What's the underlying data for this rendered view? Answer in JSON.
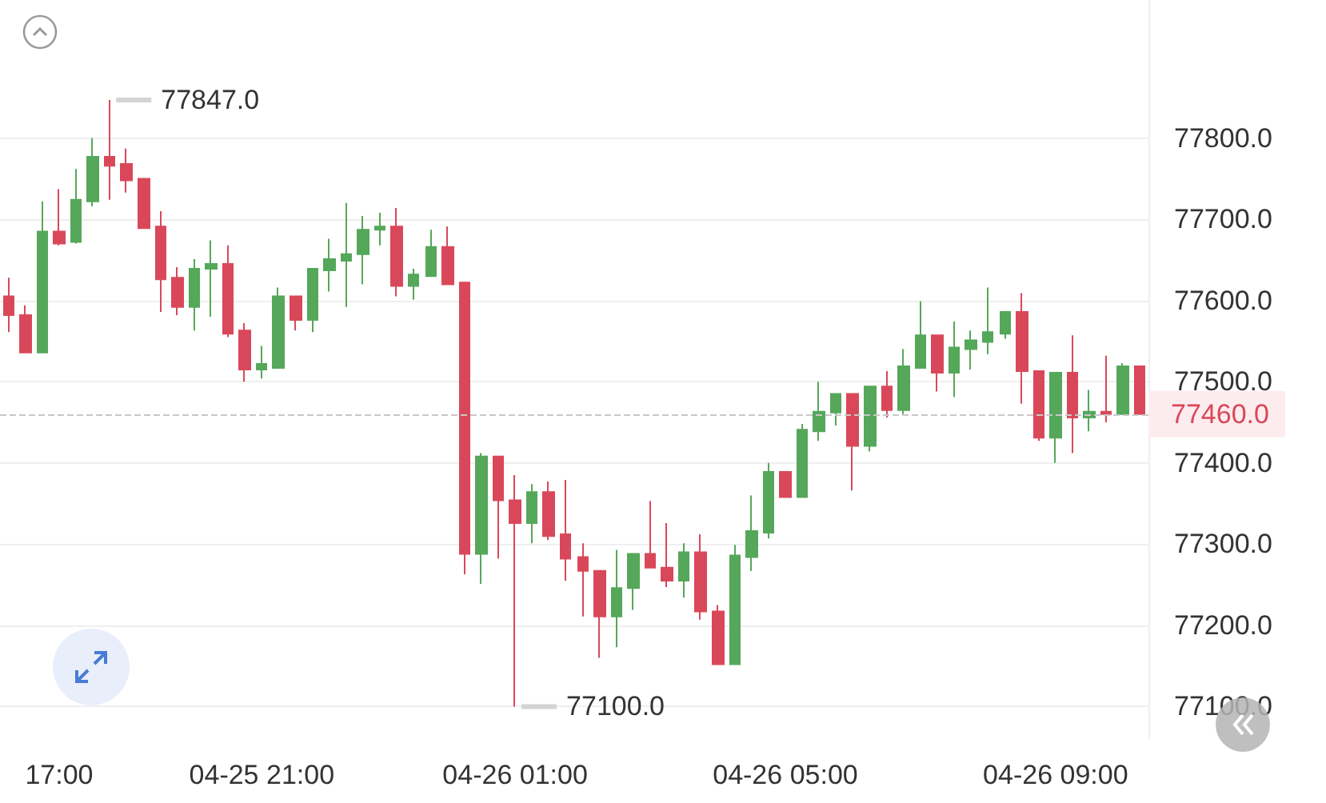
{
  "chart_data": {
    "type": "candlestick",
    "categories": [
      null,
      null,
      null,
      "17:00",
      null,
      null,
      null,
      null,
      null,
      null,
      null,
      null,
      null,
      null,
      null,
      "04-25 21:00",
      null,
      null,
      null,
      null,
      null,
      null,
      null,
      null,
      null,
      null,
      null,
      null,
      null,
      null,
      "04-26 01:00",
      null,
      null,
      null,
      null,
      null,
      null,
      null,
      null,
      null,
      null,
      null,
      null,
      null,
      null,
      null,
      "04-26 05:00",
      null,
      null,
      null,
      null,
      null,
      null,
      null,
      null,
      null,
      null,
      null,
      null,
      null,
      null,
      null,
      "04-26 09:00",
      null,
      null,
      null,
      null,
      null
    ],
    "ohlc": [
      [
        77605,
        77628,
        77561,
        77582
      ],
      [
        77582,
        77594,
        77536,
        77536
      ],
      [
        77536,
        77722,
        77536,
        77685
      ],
      [
        77685,
        77737,
        77668,
        77670
      ],
      [
        77672,
        77762,
        77670,
        77724
      ],
      [
        77722,
        77800,
        77716,
        77777
      ],
      [
        77777,
        77847,
        77724,
        77766
      ],
      [
        77768,
        77787,
        77733,
        77748
      ],
      [
        77750,
        77750,
        77689,
        77689
      ],
      [
        77691,
        77710,
        77586,
        77626
      ],
      [
        77628,
        77641,
        77582,
        77592
      ],
      [
        77592,
        77651,
        77563,
        77639
      ],
      [
        77639,
        77674,
        77580,
        77645
      ],
      [
        77645,
        77668,
        77555,
        77559
      ],
      [
        77563,
        77572,
        77500,
        77515
      ],
      [
        77515,
        77544,
        77504,
        77522
      ],
      [
        77517,
        77616,
        77517,
        77605
      ],
      [
        77605,
        77605,
        77563,
        77576
      ],
      [
        77576,
        77639,
        77561,
        77639
      ],
      [
        77637,
        77676,
        77611,
        77651
      ],
      [
        77649,
        77720,
        77592,
        77657
      ],
      [
        77657,
        77704,
        77620,
        77687
      ],
      [
        77687,
        77708,
        77668,
        77691
      ],
      [
        77691,
        77714,
        77605,
        77618
      ],
      [
        77618,
        77639,
        77601,
        77632
      ],
      [
        77630,
        77687,
        77630,
        77666
      ],
      [
        77666,
        77691,
        77620,
        77620
      ],
      [
        77622,
        77622,
        77263,
        77288
      ],
      [
        77288,
        77412,
        77251,
        77408
      ],
      [
        77408,
        77408,
        77282,
        77354
      ],
      [
        77354,
        77385,
        77100,
        77326
      ],
      [
        77326,
        77374,
        77301,
        77364
      ],
      [
        77364,
        77377,
        77305,
        77310
      ],
      [
        77312,
        77379,
        77255,
        77282
      ],
      [
        77284,
        77301,
        77211,
        77267
      ],
      [
        77267,
        77267,
        77160,
        77211
      ],
      [
        77211,
        77293,
        77173,
        77246
      ],
      [
        77246,
        77288,
        77219,
        77288
      ],
      [
        77288,
        77353,
        77271,
        77271
      ],
      [
        77271,
        77326,
        77247,
        77255
      ],
      [
        77255,
        77301,
        77234,
        77290
      ],
      [
        77290,
        77312,
        77207,
        77217
      ],
      [
        77217,
        77225,
        77152,
        77152
      ],
      [
        77152,
        77299,
        77152,
        77286
      ],
      [
        77284,
        77360,
        77267,
        77316
      ],
      [
        77314,
        77400,
        77307,
        77389
      ],
      [
        77389,
        77389,
        77358,
        77358
      ],
      [
        77358,
        77448,
        77358,
        77441
      ],
      [
        77439,
        77500,
        77427,
        77463
      ],
      [
        77462,
        77485,
        77446,
        77485
      ],
      [
        77485,
        77485,
        77366,
        77421
      ],
      [
        77421,
        77494,
        77414,
        77494
      ],
      [
        77494,
        77513,
        77456,
        77465
      ],
      [
        77465,
        77540,
        77460,
        77519
      ],
      [
        77517,
        77599,
        77517,
        77557
      ],
      [
        77557,
        77557,
        77488,
        77511
      ],
      [
        77511,
        77574,
        77481,
        77542
      ],
      [
        77540,
        77563,
        77515,
        77551
      ],
      [
        77549,
        77616,
        77534,
        77561
      ],
      [
        77559,
        77586,
        77553,
        77586
      ],
      [
        77586,
        77609,
        77473,
        77513
      ],
      [
        77513,
        77513,
        77427,
        77431
      ],
      [
        77431,
        77511,
        77400,
        77511
      ],
      [
        77511,
        77557,
        77412,
        77456
      ],
      [
        77456,
        77490,
        77439,
        77463
      ],
      [
        77463,
        77532,
        77450,
        77460
      ],
      [
        77460,
        77523,
        77460,
        77519
      ],
      [
        77519,
        77519,
        77460,
        77460
      ]
    ],
    "ylim": [
      77060,
      77970
    ],
    "yticks": [
      {
        "value": 77100,
        "label": "77100.0"
      },
      {
        "value": 77200,
        "label": "77200.0"
      },
      {
        "value": 77300,
        "label": "77300.0"
      },
      {
        "value": 77400,
        "label": "77400.0"
      },
      {
        "value": 77500,
        "label": "77500.0"
      },
      {
        "value": 77600,
        "label": "77600.0"
      },
      {
        "value": 77700,
        "label": "77700.0"
      },
      {
        "value": 77800,
        "label": "77800.0"
      }
    ],
    "grid": "y",
    "ref_lines": [
      {
        "axis": "y",
        "value": 77460,
        "label": "77460.0",
        "color": "#c8c8c8",
        "line_style": "dashed"
      }
    ],
    "annotations": [
      "77847.0",
      "77100.0"
    ]
  }
}
